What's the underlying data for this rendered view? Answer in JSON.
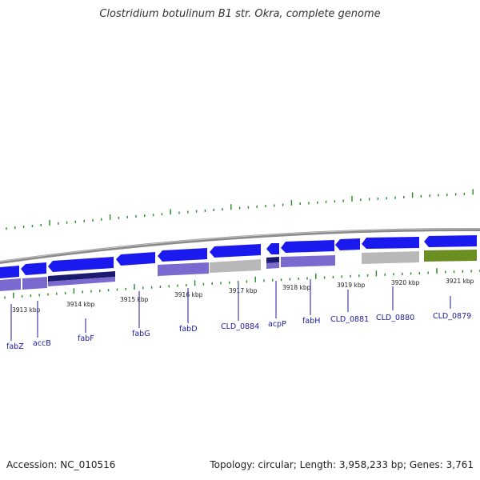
{
  "header": {
    "title": "Clostridium botulinum B1 str. Okra, complete genome"
  },
  "footer": {
    "accession": "Accession: NC_010516",
    "summary": "Topology: circular; Length: 3,958,233 bp; Genes: 3,761"
  },
  "colors": {
    "cds_blue": "#1a1aee",
    "protein_purple": "#7a6ad0",
    "dark_navy": "#1a1a70",
    "grey_feature": "#b8b8b8",
    "olive_feature": "#6b8e23",
    "gc_tick_green": "#228b22",
    "backbone_grey": "#8a8a8a",
    "label_blue": "#1a1aa0"
  },
  "map": {
    "kbp_labels": [
      {
        "text": "3913 kbp"
      },
      {
        "text": "3914 kbp"
      },
      {
        "text": "3915 kbp"
      },
      {
        "text": "3916 kbp"
      },
      {
        "text": "3917 kbp"
      },
      {
        "text": "3918 kbp"
      },
      {
        "text": "3919 kbp"
      },
      {
        "text": "3920 kbp"
      },
      {
        "text": "3921 kbp"
      }
    ],
    "gene_labels": [
      {
        "text": "fabZ"
      },
      {
        "text": "accB"
      },
      {
        "text": "fabF"
      },
      {
        "text": "fabG"
      },
      {
        "text": "fabD"
      },
      {
        "text": "CLD_0884"
      },
      {
        "text": "acpP"
      },
      {
        "text": "fabH"
      },
      {
        "text": "CLD_0881"
      },
      {
        "text": "CLD_0880"
      },
      {
        "text": "CLD_0879"
      }
    ]
  }
}
